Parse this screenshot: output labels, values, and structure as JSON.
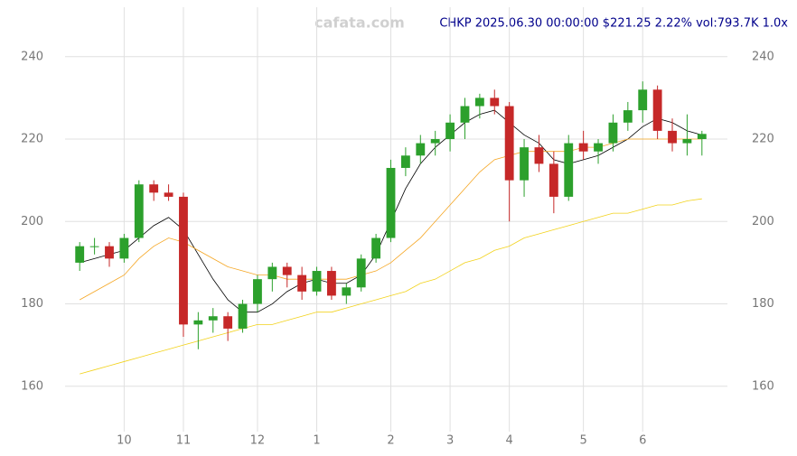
{
  "chart_data": {
    "type": "candlestick",
    "title": "CHKP 2025.06.30 00:00:00 $221.25 2.22% vol:793.7K 1.0x",
    "watermark": "cafata.com",
    "categories": [
      null,
      null,
      null,
      "10",
      null,
      null,
      null,
      "11",
      null,
      null,
      null,
      null,
      "12",
      null,
      null,
      null,
      "1",
      null,
      null,
      null,
      null,
      "2",
      null,
      null,
      null,
      "3",
      null,
      null,
      null,
      "4",
      null,
      null,
      null,
      null,
      "5",
      null,
      null,
      null,
      "6",
      null,
      null,
      null,
      null
    ],
    "open": [
      190,
      194,
      194,
      191,
      196,
      209,
      207,
      206,
      175,
      176,
      177,
      174,
      180,
      186,
      189,
      187,
      183,
      188,
      182,
      184,
      191,
      196,
      213,
      216,
      219,
      220,
      224,
      228,
      230,
      228,
      210,
      218,
      214,
      206,
      219,
      217,
      219,
      224,
      227,
      232,
      222,
      219,
      220
    ],
    "high": [
      195,
      196,
      195,
      197,
      210,
      210,
      209,
      207,
      178,
      179,
      178,
      181,
      187,
      190,
      190,
      189,
      189,
      189,
      185,
      192,
      197,
      215,
      218,
      221,
      222,
      226,
      230,
      231,
      232,
      229,
      220,
      221,
      217,
      221,
      222,
      220,
      226,
      229,
      234,
      233,
      225,
      226,
      222
    ],
    "low": [
      188,
      192,
      189,
      190,
      195,
      205,
      205,
      172,
      169,
      173,
      171,
      173,
      178,
      183,
      184,
      181,
      182,
      181,
      180,
      183,
      190,
      195,
      211,
      214,
      216,
      217,
      220,
      225,
      226,
      200,
      206,
      212,
      202,
      205,
      215,
      214,
      217,
      222,
      224,
      220,
      217,
      216,
      216
    ],
    "close": [
      194,
      194,
      191,
      196,
      209,
      207,
      206,
      175,
      176,
      177,
      174,
      180,
      186,
      189,
      187,
      183,
      188,
      182,
      184,
      191,
      196,
      213,
      216,
      219,
      220,
      224,
      228,
      230,
      228,
      210,
      218,
      214,
      206,
      219,
      217,
      219,
      224,
      227,
      232,
      222,
      219,
      220,
      221.25
    ],
    "up_color": "#2ca02c",
    "down_color": "#c62828",
    "lines": [
      {
        "color": "#000000",
        "values": [
          190,
          191,
          192,
          193,
          196,
          199,
          201,
          198,
          192,
          186,
          181,
          178,
          178,
          180,
          183,
          185,
          186,
          185,
          185,
          187,
          192,
          200,
          208,
          214,
          218,
          221,
          224,
          226,
          227,
          224,
          221,
          219,
          215,
          214,
          215,
          216,
          218,
          220,
          223,
          225,
          224,
          222,
          221
        ]
      },
      {
        "color": "#f5a623",
        "values": [
          181,
          183,
          185,
          187,
          191,
          194,
          196,
          195,
          193,
          191,
          189,
          188,
          187,
          187,
          186,
          186,
          186,
          186,
          186,
          187,
          188,
          190,
          193,
          196,
          200,
          204,
          208,
          212,
          215,
          216,
          217,
          217,
          217,
          217,
          218,
          218,
          219,
          220,
          220,
          220,
          220,
          220,
          220
        ]
      },
      {
        "color": "#f2d21b",
        "values": [
          163,
          164,
          165,
          166,
          167,
          168,
          169,
          170,
          171,
          172,
          173,
          174,
          175,
          175,
          176,
          177,
          178,
          178,
          179,
          180,
          181,
          182,
          183,
          185,
          186,
          188,
          190,
          191,
          193,
          194,
          196,
          197,
          198,
          199,
          200,
          201,
          202,
          202,
          203,
          204,
          204,
          205,
          205.5
        ]
      }
    ],
    "ylim": [
      149,
      252
    ],
    "yticks": [
      160,
      180,
      200,
      220,
      240
    ],
    "grid": true
  }
}
